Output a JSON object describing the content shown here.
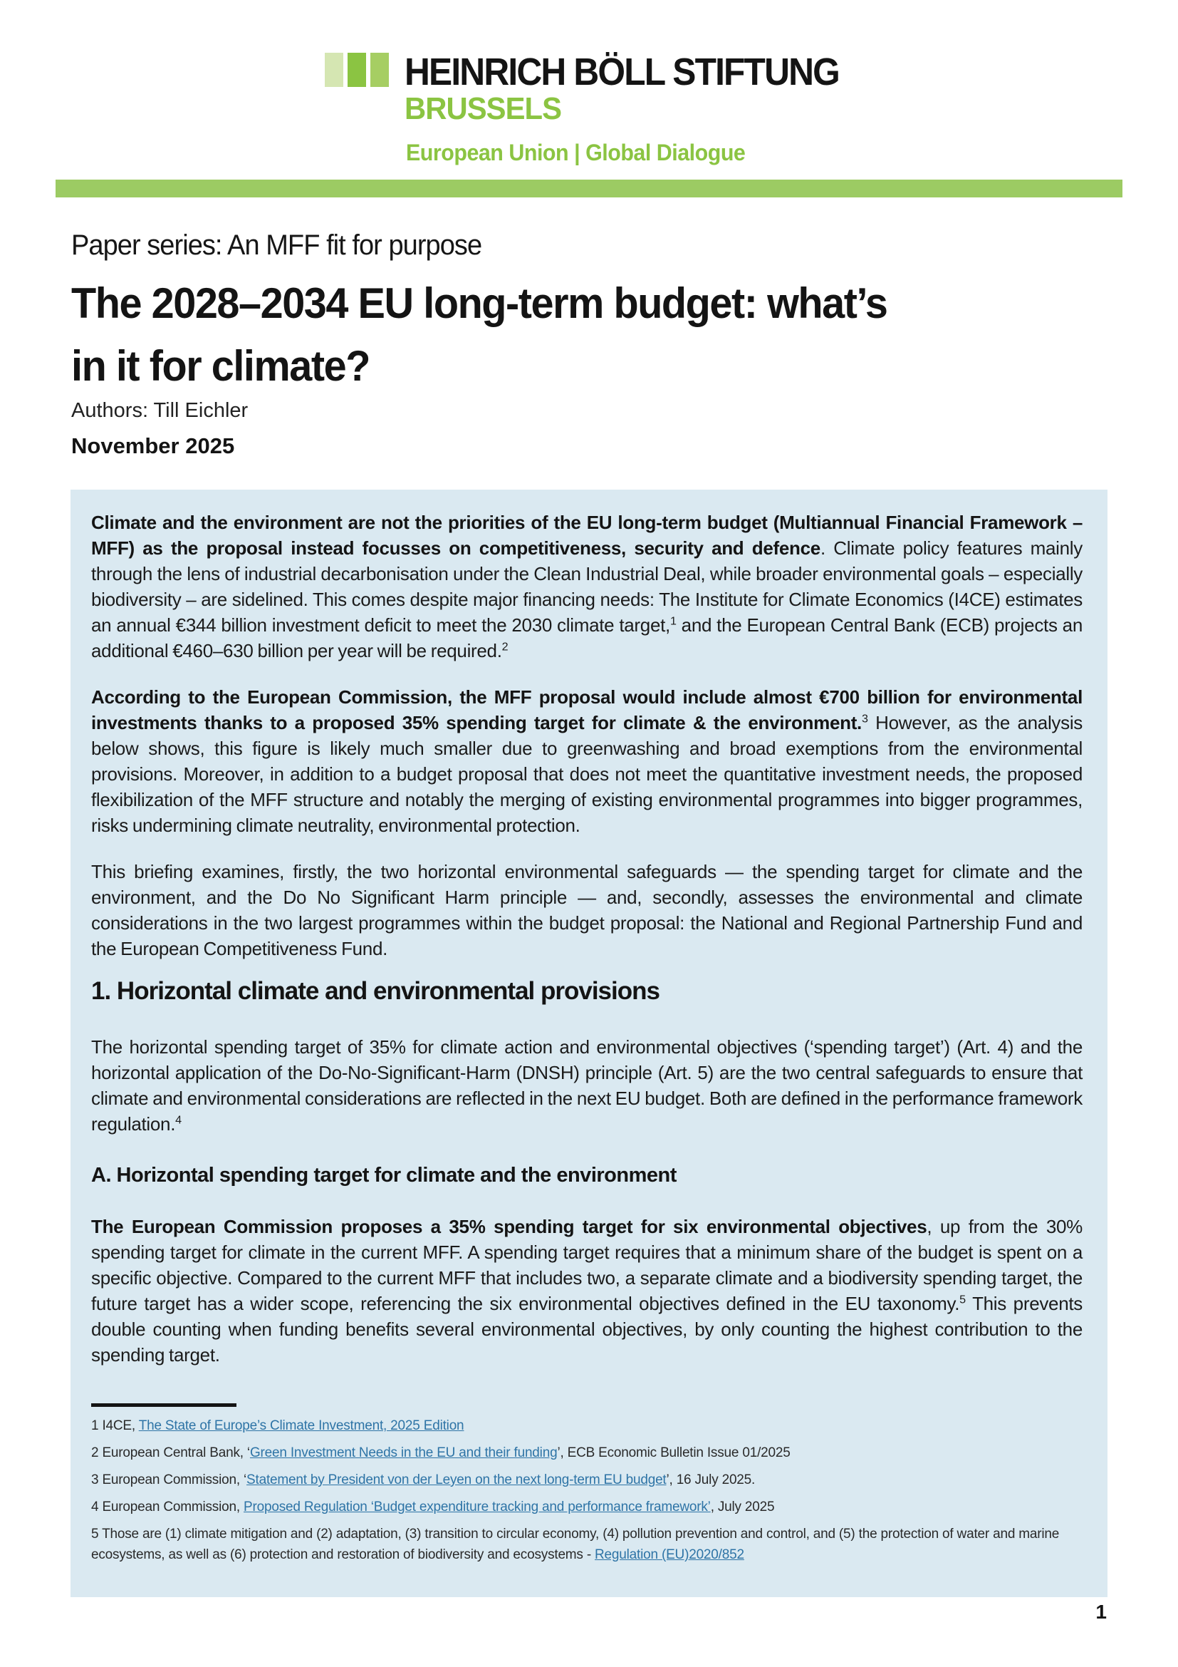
{
  "colors": {
    "brand_green": "#8bc442",
    "brand_green_light": "#d5e6b2",
    "brand_green_mid": "#a6ce63",
    "divider_green": "#9ccb63",
    "box_blue": "#dae9f1",
    "link_blue": "#2e74a6"
  },
  "logo": {
    "org": "HEINRICH BÖLL STIFTUNG",
    "city": "BRUSSELS",
    "tagline": "European Union | Global Dialogue"
  },
  "title_block": {
    "series": "Paper series: An MFF fit for purpose",
    "title_line1": "The 2028–2034 EU long-term budget: what’s",
    "title_line2": "in it for climate?",
    "authors": "Authors: Till Eichler",
    "date": "November 2025"
  },
  "article": {
    "p1": {
      "bold": "Climate and the environment are not the priorities of the EU long-term budget (Multiannual Financial Framework – MFF) as the proposal instead focusses on competitiveness, security and defence",
      "t1": ". Climate policy features mainly through the lens of industrial decarbonisation under the Clean Industrial Deal, while broader environmental goals – especially biodiversity – are sidelined. This comes despite major financing needs: The Institute for Climate Economics (I4CE) estimates an annual €344 billion investment deficit to meet the 2030 climate target,",
      "sup1": "1",
      "t2": " and the European Central Bank (ECB) projects an additional €460–630 billion per year will be required.",
      "sup2": "2"
    },
    "p2": {
      "bold": "According to the European Commission, the MFF proposal would include almost €700 billion for environmental investments thanks to a proposed 35% spending target for climate & the environment.",
      "sup": "3",
      "t1": " However, as the analysis below shows, this figure is likely much smaller due to greenwashing and broad exemptions from the environmental provisions. Moreover, in addition to a budget proposal that does not meet the quantitative investment needs, the proposed flexibilization of the MFF structure and notably the merging of existing environmental programmes into bigger programmes, risks undermining climate neutrality, environmental protection."
    },
    "p3": {
      "t1": "This briefing examines, firstly, the two horizontal environmental safeguards — the spending target for climate and the environment, and the Do No Significant Harm principle — and, secondly, assesses the environmental and climate considerations in the two largest programmes within the budget proposal: the National and Regional Partnership Fund and the European Competitiveness Fund."
    },
    "section1_heading": "1. Horizontal climate and environmental provisions",
    "p4": {
      "t1": "The horizontal spending target of 35% for climate action and environmental objectives (‘spending target’) (Art. 4) and the horizontal application of the Do-No-Significant-Harm (DNSH) principle (Art. 5) are the two central safeguards to ensure that climate and environmental considerations are reflected in the next EU budget. Both are defined in the performance framework regulation.",
      "sup": "4"
    },
    "sectionA_heading": "A. Horizontal spending target for climate and the environment",
    "p5": {
      "bold": "The European Commission proposes a 35% spending target for six environmental objectives",
      "t1": ", up from the 30% spending target for climate in the current MFF. A spending target requires that a minimum share of the budget is spent on a specific objective. Compared to the current MFF that includes two, a separate climate and a biodiversity spending target, the future target has a wider scope, referencing the six environmental objectives defined in the EU taxonomy.",
      "sup": "5",
      "t2": " This prevents double counting when funding benefits several environmental objectives, by only counting the highest contribution to the spending target."
    }
  },
  "footnotes": [
    {
      "prefix": "1 I4CE, ",
      "link": "The State of Europe’s Climate Investment, 2025 Edition",
      "suffix": ""
    },
    {
      "prefix": "2 European Central Bank, ‘",
      "link": "Green Investment Needs in the EU and their funding",
      "suffix": "’, ECB Economic Bulletin Issue 01/2025"
    },
    {
      "prefix": "3 European Commission, ‘",
      "link": "Statement by President von der Leyen on the next long-term EU budget",
      "suffix": "’, 16 July 2025."
    },
    {
      "prefix": "4 European Commission, ",
      "link": "Proposed Regulation ‘Budget expenditure tracking and performance framework’",
      "suffix": ", July 2025"
    },
    {
      "prefix": "5 Those are (1) climate mitigation and (2) adaptation, (3) transition to circular economy, (4) pollution prevention and control, and (5) the protection of water and marine ecosystems, as well as (6) protection and restoration of biodiversity and ecosystems - ",
      "link": "Regulation (EU)2020/852",
      "suffix": ""
    }
  ],
  "page": {
    "number": "1"
  }
}
